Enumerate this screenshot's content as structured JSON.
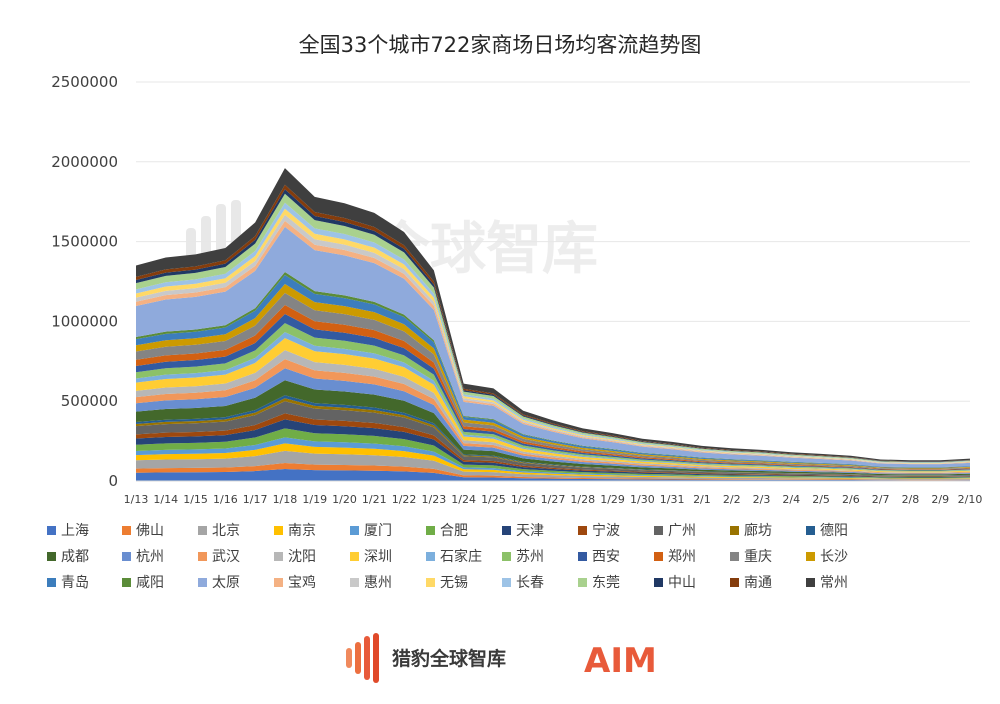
{
  "chart_data": {
    "type": "area",
    "stacked": true,
    "title": "全国33个城市722家商场日场均客流趋势图",
    "xlabel": "",
    "ylabel": "",
    "ylim": [
      0,
      2500000
    ],
    "yticks": [
      "0",
      "500000",
      "1000000",
      "1500000",
      "2000000",
      "2500000"
    ],
    "categories": [
      "1/13",
      "1/14",
      "1/15",
      "1/16",
      "1/17",
      "1/18",
      "1/19",
      "1/20",
      "1/21",
      "1/22",
      "1/23",
      "1/24",
      "1/25",
      "1/26",
      "1/27",
      "1/28",
      "1/29",
      "1/30",
      "1/31",
      "2/1",
      "2/2",
      "2/3",
      "2/4",
      "2/5",
      "2/6",
      "2/7",
      "2/8",
      "2/9",
      "2/10"
    ],
    "totals": [
      1350000,
      1400000,
      1420000,
      1460000,
      1620000,
      1960000,
      1780000,
      1740000,
      1680000,
      1560000,
      1320000,
      610000,
      580000,
      440000,
      380000,
      330000,
      300000,
      265000,
      245000,
      220000,
      205000,
      195000,
      180000,
      170000,
      158000,
      135000,
      130000,
      130000,
      140000
    ],
    "series": [
      {
        "name": "上海",
        "color": "#4472c4",
        "share": 0.04
      },
      {
        "name": "佛山",
        "color": "#ed7d31",
        "share": 0.02
      },
      {
        "name": "北京",
        "color": "#a5a5a5",
        "share": 0.04
      },
      {
        "name": "南京",
        "color": "#ffc000",
        "share": 0.025
      },
      {
        "name": "厦门",
        "color": "#5b9bd5",
        "share": 0.02
      },
      {
        "name": "合肥",
        "color": "#70ad47",
        "share": 0.03
      },
      {
        "name": "天津",
        "color": "#264478",
        "share": 0.03
      },
      {
        "name": "宁波",
        "color": "#9e480e",
        "share": 0.02
      },
      {
        "name": "广州",
        "color": "#636363",
        "share": 0.04
      },
      {
        "name": "廊坊",
        "color": "#997300",
        "share": 0.01
      },
      {
        "name": "德阳",
        "color": "#255e91",
        "share": 0.01
      },
      {
        "name": "成都",
        "color": "#43682b",
        "share": 0.05
      },
      {
        "name": "杭州",
        "color": "#698ed0",
        "share": 0.04
      },
      {
        "name": "武汉",
        "color": "#f1975a",
        "share": 0.03
      },
      {
        "name": "沈阳",
        "color": "#b7b7b7",
        "share": 0.03
      },
      {
        "name": "深圳",
        "color": "#ffcd33",
        "share": 0.04
      },
      {
        "name": "石家庄",
        "color": "#7cafdd",
        "share": 0.02
      },
      {
        "name": "苏州",
        "color": "#8cc168",
        "share": 0.03
      },
      {
        "name": "西安",
        "color": "#335aa1",
        "share": 0.03
      },
      {
        "name": "郑州",
        "color": "#d26012",
        "share": 0.03
      },
      {
        "name": "重庆",
        "color": "#848484",
        "share": 0.04
      },
      {
        "name": "长沙",
        "color": "#cc9a00",
        "share": 0.03
      },
      {
        "name": "青岛",
        "color": "#3c7dbc",
        "share": 0.03
      },
      {
        "name": "咸阳",
        "color": "#5b8c39",
        "share": 0.01
      },
      {
        "name": "太原",
        "color": "#8faadc",
        "share": 0.15
      },
      {
        "name": "宝鸡",
        "color": "#f4b183",
        "share": 0.02
      },
      {
        "name": "惠州",
        "color": "#c9c9c9",
        "share": 0.02
      },
      {
        "name": "无锡",
        "color": "#ffd966",
        "share": 0.02
      },
      {
        "name": "长春",
        "color": "#9dc3e6",
        "share": 0.02
      },
      {
        "name": "东莞",
        "color": "#a9d18e",
        "share": 0.03
      },
      {
        "name": "中山",
        "color": "#203864",
        "share": 0.015
      },
      {
        "name": "南通",
        "color": "#843c0c",
        "share": 0.015
      },
      {
        "name": "常州",
        "color": "#3f3f3f",
        "share": 0.055
      }
    ]
  },
  "watermark": {
    "text": "猎豹全球智库"
  },
  "footer": {
    "brand_text": "猎豹全球智库",
    "aim_text": "AIM"
  }
}
